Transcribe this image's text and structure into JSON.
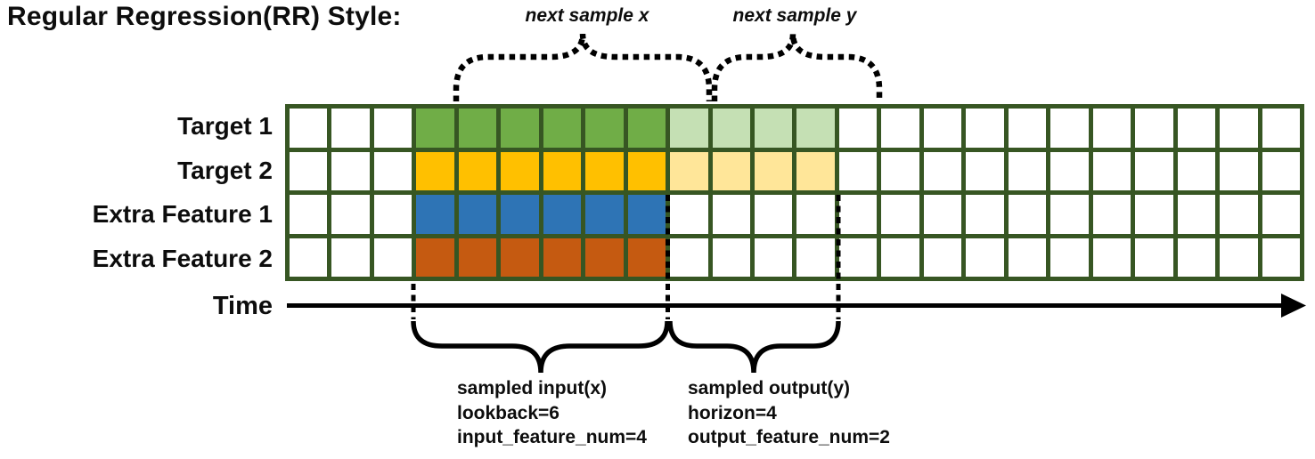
{
  "title": "Regular Regression(RR) Style:",
  "top_labels": {
    "next_sample_x": "next sample x",
    "next_sample_y": "next sample y"
  },
  "time_axis": {
    "label": "Time"
  },
  "grid": {
    "columns": 24,
    "border_color": "#375623",
    "cell_color_empty": "#FFFFFF",
    "rows": [
      {
        "label": "Target 1",
        "input_cells": {
          "start": 4,
          "end": 9,
          "color": "#70AD47"
        },
        "output_cells": {
          "start": 10,
          "end": 13,
          "color": "#C5E0B4"
        }
      },
      {
        "label": "Target 2",
        "input_cells": {
          "start": 4,
          "end": 9,
          "color": "#FFC000"
        },
        "output_cells": {
          "start": 10,
          "end": 13,
          "color": "#FFE699"
        }
      },
      {
        "label": "Extra Feature 1",
        "input_cells": {
          "start": 4,
          "end": 9,
          "color": "#2E74B5"
        },
        "output_cells": null
      },
      {
        "label": "Extra Feature 2",
        "input_cells": {
          "start": 4,
          "end": 9,
          "color": "#C55A11"
        },
        "output_cells": null
      }
    ]
  },
  "sampled_input_annotation": [
    "sampled input(x)",
    "lookback=6",
    "input_feature_num=4"
  ],
  "sampled_output_annotation": [
    "sampled output(y)",
    "horizon=4",
    "output_feature_num=2"
  ]
}
